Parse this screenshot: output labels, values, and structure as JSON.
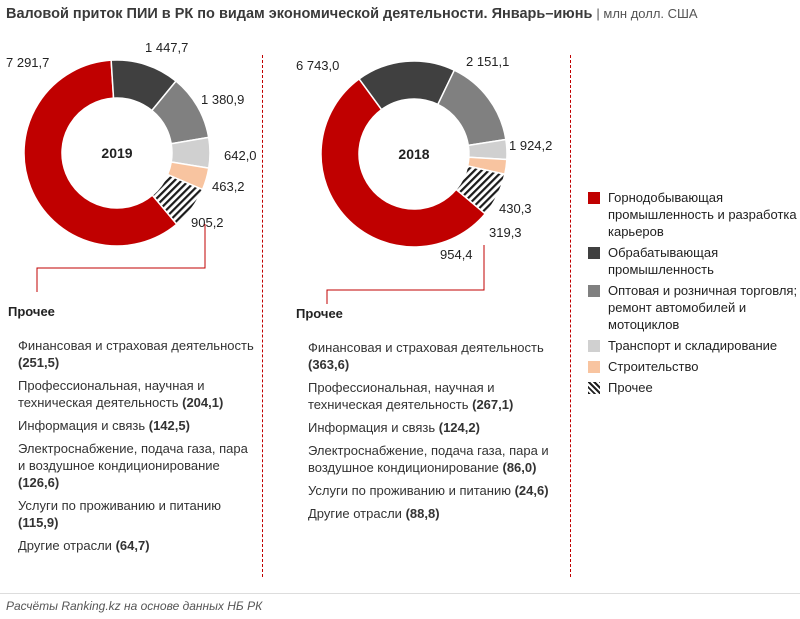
{
  "header": {
    "title": "Валовой приток ПИИ в РК по видам экономической деятельности. Январь–июнь",
    "unit": "| млн долл. США"
  },
  "colors": {
    "mining": "#c00000",
    "manufacturing": "#404040",
    "trade": "#808080",
    "transport": "#d0d0d0",
    "construction": "#f8c4a0",
    "other": "hatch-black-white",
    "divider": "#c00000"
  },
  "chart_data": [
    {
      "type": "donut",
      "center_label": "2019",
      "series": [
        {
          "name": "Горнодобывающая промышленность и разработка карьеров",
          "value": 7291.7,
          "label": "7 291,7"
        },
        {
          "name": "Обрабатывающая промышленность",
          "value": 1447.7,
          "label": "1 447,7"
        },
        {
          "name": "Оптовая и розничная торговля; ремонт автомобилей и мотоциклов",
          "value": 1380.9,
          "label": "1 380,9"
        },
        {
          "name": "Транспорт и складирование",
          "value": 642.0,
          "label": "642,0"
        },
        {
          "name": "Строительство",
          "value": 463.2,
          "label": "463,2"
        },
        {
          "name": "Прочее",
          "value": 905.2,
          "label": "905,2"
        }
      ]
    },
    {
      "type": "donut",
      "center_label": "2018",
      "series": [
        {
          "name": "Горнодобывающая промышленность и разработка карьеров",
          "value": 6743.0,
          "label": "6 743,0"
        },
        {
          "name": "Обрабатывающая промышленность",
          "value": 2151.1,
          "label": "2 151,1"
        },
        {
          "name": "Оптовая и розничная торговля; ремонт автомобилей и мотоциклов",
          "value": 1924.2,
          "label": "1 924,2"
        },
        {
          "name": "Транспорт и складирование",
          "value": 430.3,
          "label": "430,3"
        },
        {
          "name": "Строительство",
          "value": 319.3,
          "label": "319,3"
        },
        {
          "name": "Прочее",
          "value": 954.4,
          "label": "954,4"
        }
      ]
    }
  ],
  "breakdown": {
    "heading": "Прочее",
    "y2019": [
      {
        "name": "Финансовая и страховая деятельность",
        "value": "(251,5)"
      },
      {
        "name": "Профессиональная, научная и техническая деятельность",
        "value": "(204,1)"
      },
      {
        "name": "Информация и связь",
        "value": "(142,5)"
      },
      {
        "name": "Электроснабжение, подача газа, пара и воздушное кондиционирование",
        "value": "(126,6)"
      },
      {
        "name": "Услуги по проживанию и питанию",
        "value": "(115,9)"
      },
      {
        "name": "Другие отрасли",
        "value": "(64,7)"
      }
    ],
    "y2018": [
      {
        "name": "Финансовая и страховая деятельность",
        "value": "(363,6)"
      },
      {
        "name": "Профессиональная, научная и техническая деятельность",
        "value": "(267,1)"
      },
      {
        "name": "Информация и связь",
        "value": "(124,2)"
      },
      {
        "name": "Электроснабжение, подача газа, пара и воздушное кондиционирование",
        "value": "(86,0)"
      },
      {
        "name": "Услуги по проживанию и питанию",
        "value": "(24,6)"
      },
      {
        "name": "Другие отрасли",
        "value": "(88,8)"
      }
    ]
  },
  "legend": [
    {
      "label": "Горнодобывающая промышленность и разработка карьеров",
      "color": "#c00000"
    },
    {
      "label": "Обрабатывающая промышленность",
      "color": "#404040"
    },
    {
      "label": "Оптовая и розничная торговля; ремонт автомобилей и мотоциклов",
      "color": "#808080"
    },
    {
      "label": "Транспорт и складирование",
      "color": "#d0d0d0"
    },
    {
      "label": "Строительство",
      "color": "#f8c4a0"
    },
    {
      "label": "Прочее",
      "color": "hatch"
    }
  ],
  "source": "Расчёты Ranking.kz на основе данных НБ РК"
}
